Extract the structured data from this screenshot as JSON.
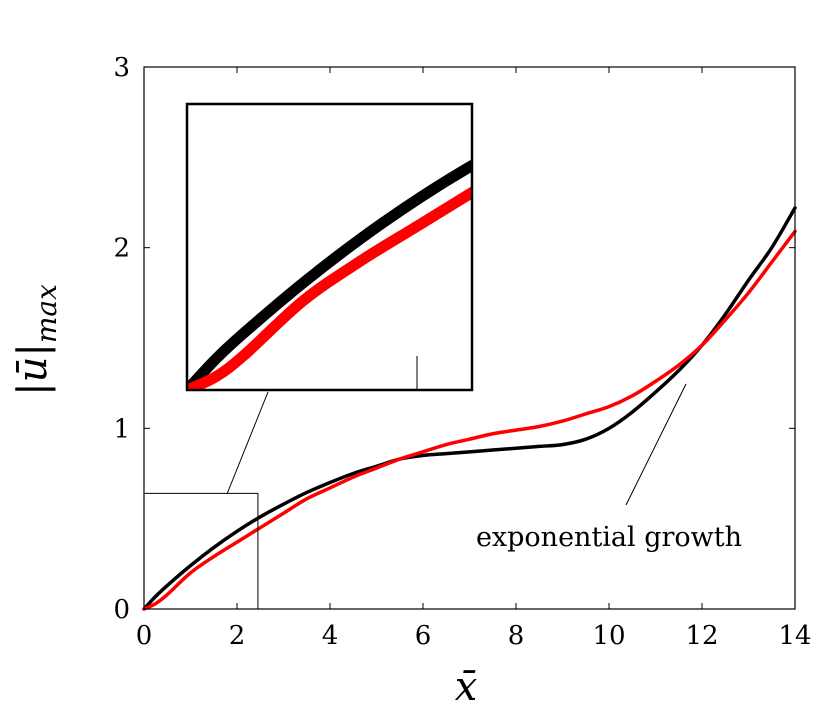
{
  "chart_data": {
    "type": "line",
    "xlabel": "x̄",
    "ylabel": "|ū|",
    "ylabel_subscript": "max",
    "xlim": [
      0,
      14
    ],
    "ylim": [
      0,
      3
    ],
    "xticks": [
      0,
      2,
      4,
      6,
      8,
      10,
      12,
      14
    ],
    "yticks": [
      0,
      1,
      2,
      3
    ],
    "grid": false,
    "annotation": {
      "text": "exponential growth",
      "x": 11.6,
      "y": 1.27
    },
    "inset": {
      "xlim": [
        0,
        2.45
      ],
      "ylim": [
        0,
        0.64
      ]
    },
    "series": [
      {
        "color": "#000000",
        "x": [
          0,
          0.25,
          0.5,
          1,
          1.5,
          2,
          2.5,
          3,
          3.5,
          4,
          4.5,
          5,
          5.5,
          6,
          6.5,
          7,
          7.5,
          8,
          8.5,
          9,
          9.5,
          10,
          10.5,
          11,
          11.5,
          12,
          12.5,
          13,
          13.5,
          14
        ],
        "y": [
          0,
          0.07,
          0.13,
          0.24,
          0.34,
          0.43,
          0.51,
          0.58,
          0.645,
          0.7,
          0.75,
          0.79,
          0.83,
          0.85,
          0.86,
          0.87,
          0.88,
          0.89,
          0.9,
          0.91,
          0.94,
          1.0,
          1.09,
          1.2,
          1.32,
          1.46,
          1.63,
          1.82,
          2.0,
          2.22
        ]
      },
      {
        "color": "#ff0000",
        "x": [
          0,
          0.25,
          0.5,
          1,
          1.5,
          2,
          2.5,
          3,
          3.5,
          4,
          4.5,
          5,
          5.5,
          6,
          6.5,
          7,
          7.5,
          8,
          8.5,
          9,
          9.5,
          10,
          10.5,
          11,
          11.5,
          12,
          12.5,
          13,
          13.5,
          14
        ],
        "y": [
          0,
          0.03,
          0.08,
          0.2,
          0.29,
          0.37,
          0.45,
          0.53,
          0.61,
          0.67,
          0.73,
          0.78,
          0.83,
          0.87,
          0.91,
          0.94,
          0.97,
          0.99,
          1.01,
          1.04,
          1.08,
          1.12,
          1.18,
          1.26,
          1.35,
          1.46,
          1.6,
          1.75,
          1.92,
          2.09
        ]
      }
    ]
  }
}
